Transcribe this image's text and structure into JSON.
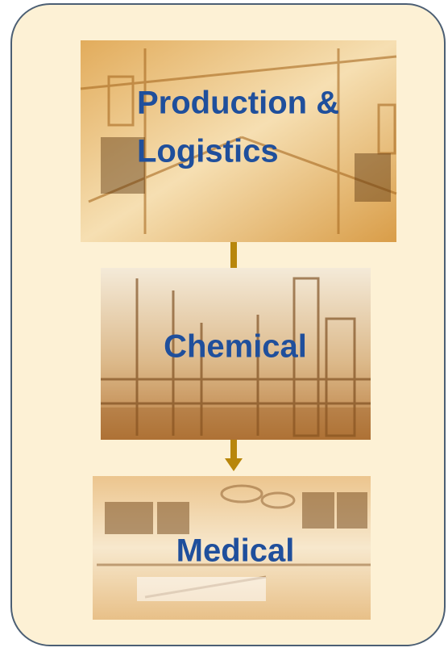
{
  "nodes": [
    {
      "label": [
        "Production &",
        "Logistics"
      ]
    },
    {
      "label": "Chemical"
    },
    {
      "label": "Medical"
    }
  ]
}
